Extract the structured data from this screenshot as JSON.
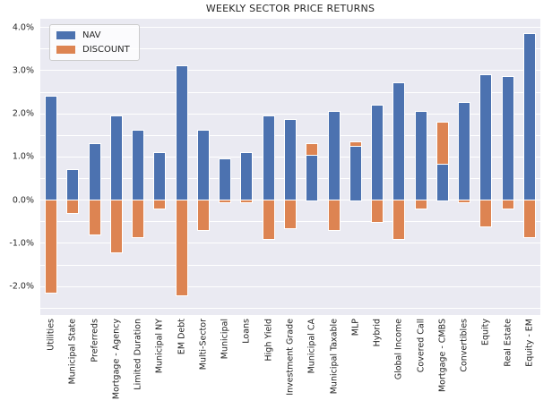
{
  "title": "WEEKLY SECTOR PRICE RETURNS",
  "legend": {
    "nav_label": "NAV",
    "discount_label": "DISCOUNT"
  },
  "colors": {
    "nav": "#4C72B0",
    "discount": "#DD8452",
    "plot_background": "#EAEAF2",
    "gridline": "#FFFFFF",
    "text": "#262626"
  },
  "y_axis": {
    "ticks": [
      {
        "label": "4.0%",
        "value": 4
      },
      {
        "label": "3.0%",
        "value": 3
      },
      {
        "label": "2.0%",
        "value": 2
      },
      {
        "label": "1.0%",
        "value": 1
      },
      {
        "label": "0.0%",
        "value": 0
      },
      {
        "label": "-1.0%",
        "value": -1
      },
      {
        "label": "-2.0%",
        "value": -2
      }
    ],
    "grid_step": 0.5
  },
  "chart_data": {
    "type": "bar",
    "stacked": true,
    "title": "WEEKLY SECTOR PRICE RETURNS",
    "xlabel": "",
    "ylabel": "",
    "ylim": [
      -2.66,
      4.2
    ],
    "grid": true,
    "legend_position": "upper left",
    "categories": [
      "Utilities",
      "Municipal State",
      "Preferreds",
      "Mortgage - Agency",
      "Limited Duration",
      "Municipal NY",
      "EM Debt",
      "Multi-Sector",
      "Municipal",
      "Loans",
      "High Yield",
      "Investment Grade",
      "Municipal CA",
      "Municipal Taxable",
      "MLP",
      "Hybrid",
      "Global Income",
      "Covered Call",
      "Mortgage - CMBS",
      "Convertibles",
      "Equity",
      "Real Estate",
      "Equity - EM"
    ],
    "series": [
      {
        "name": "NAV",
        "color": "#4C72B0",
        "values": [
          2.4,
          0.7,
          1.3,
          1.95,
          1.6,
          1.1,
          3.1,
          1.6,
          0.95,
          1.1,
          1.95,
          1.85,
          1.05,
          2.05,
          1.25,
          2.2,
          2.7,
          2.05,
          0.85,
          2.25,
          2.9,
          2.85,
          3.85
        ]
      },
      {
        "name": "DISCOUNT",
        "color": "#DD8452",
        "values": [
          -2.15,
          -0.3,
          -0.8,
          -1.2,
          -0.85,
          -0.2,
          -2.2,
          -0.7,
          -0.05,
          -0.05,
          -0.9,
          -0.65,
          0.25,
          -0.7,
          0.1,
          -0.5,
          -0.9,
          -0.2,
          0.95,
          -0.05,
          -0.6,
          -0.2,
          -0.85
        ]
      }
    ]
  }
}
